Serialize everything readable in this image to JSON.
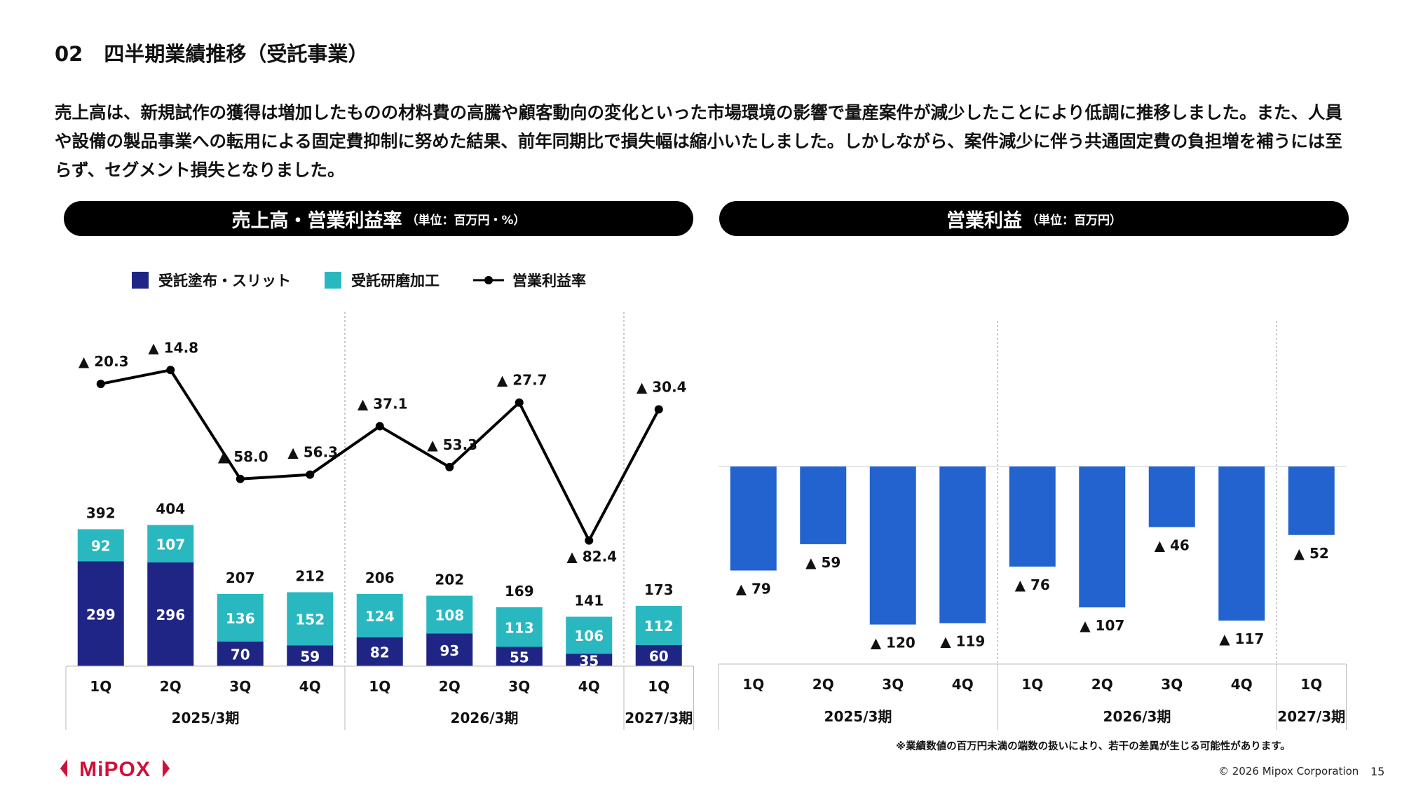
{
  "page": {
    "section_number": "02",
    "title": "四半期業績推移（受託事業）",
    "description": "売上高は、新規試作の獲得は増加したものの材料費の高騰や顧客動向の変化といった市場環境の影響で量産案件が減少したことにより低調に推移しました。また、人員や設備の製品事業への転用による固定費抑制に努めた結果、前年同期比で損失幅は縮小いたしました。しかしながら、案件減少に伴う共通固定費の負担増を補うには至らず、セグメント損失となりました。",
    "footnote": "※業績数値の百万円未満の端数の扱いにより、若干の差異が生じる可能性があります。",
    "logo_text": "MiPOX",
    "copyright": "© 2026 Mipox Corporation",
    "page_number": "15"
  },
  "colors": {
    "navy": "#1f2585",
    "teal": "#2ab8c0",
    "blue": "#2263cf",
    "line": "#000000",
    "logo": "#d0103a"
  },
  "chart_data": [
    {
      "type": "bar",
      "stacked": true,
      "title": "売上高・営業利益率",
      "unit": "（単位：百万円・%）",
      "legend": [
        "受託塗布・スリット",
        "受託研磨加工",
        "営業利益率"
      ],
      "categories": [
        "1Q",
        "2Q",
        "3Q",
        "4Q",
        "1Q",
        "2Q",
        "3Q",
        "4Q",
        "1Q"
      ],
      "groups": [
        {
          "label": "2025/3期",
          "count": 4
        },
        {
          "label": "2026/3期",
          "count": 4
        },
        {
          "label": "2027/3期",
          "count": 1
        }
      ],
      "series": [
        {
          "name": "受託塗布・スリット",
          "values": [
            299,
            296,
            70,
            59,
            82,
            93,
            55,
            35,
            60
          ]
        },
        {
          "name": "受託研磨加工",
          "values": [
            92,
            107,
            136,
            152,
            124,
            108,
            113,
            106,
            112
          ]
        }
      ],
      "totals": [
        392,
        404,
        207,
        212,
        206,
        202,
        169,
        141,
        173
      ],
      "line": {
        "name": "営業利益率",
        "values": [
          -20.3,
          -14.8,
          -58.0,
          -56.3,
          -37.1,
          -53.3,
          -27.7,
          -82.4,
          -30.4
        ],
        "labels": [
          "▲ 20.3",
          "▲ 14.8",
          "▲ 58.0",
          "▲ 56.3",
          "▲ 37.1",
          "▲ 53.3",
          "▲ 27.7",
          "▲ 82.4",
          "▲ 30.4"
        ]
      }
    },
    {
      "type": "bar",
      "title": "営業利益",
      "unit": "（単位：百万円）",
      "categories": [
        "1Q",
        "2Q",
        "3Q",
        "4Q",
        "1Q",
        "2Q",
        "3Q",
        "4Q",
        "1Q"
      ],
      "groups": [
        {
          "label": "2025/3期",
          "count": 4
        },
        {
          "label": "2026/3期",
          "count": 4
        },
        {
          "label": "2027/3期",
          "count": 1
        }
      ],
      "values": [
        -79,
        -59,
        -120,
        -119,
        -76,
        -107,
        -46,
        -117,
        -52
      ],
      "labels": [
        "▲ 79",
        "▲ 59",
        "▲ 120",
        "▲ 119",
        "▲ 76",
        "▲ 107",
        "▲ 46",
        "▲ 117",
        "▲ 52"
      ]
    }
  ]
}
